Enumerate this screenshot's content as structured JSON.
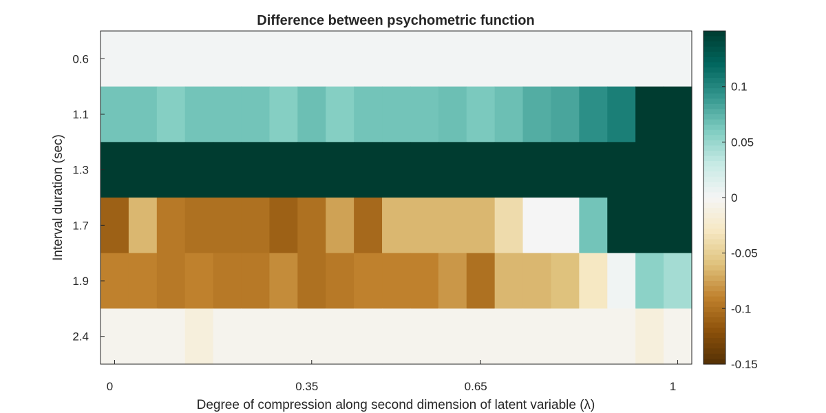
{
  "chart_data": {
    "type": "heatmap",
    "title": "Difference between psychometric function",
    "xlabel": "Degree of compression along second dimension of latent variable (λ)",
    "ylabel": "Interval duration (sec)",
    "x_tick_labels": [
      "0",
      "0.35",
      "0.65",
      "1"
    ],
    "x_tick_values": [
      0,
      0.35,
      0.65,
      1
    ],
    "x_range": [
      -0.025,
      1.025
    ],
    "x_step": 0.05,
    "y_categories": [
      "0.6",
      "1.1",
      "1.3",
      "1.7",
      "1.9",
      "2.4"
    ],
    "colorbar": {
      "range": [
        -0.15,
        0.15
      ],
      "tick_labels": [
        "0.1",
        "0.05",
        "0",
        "-0.05",
        "-0.1",
        "-0.15"
      ],
      "tick_values": [
        0.1,
        0.05,
        0,
        -0.05,
        -0.1,
        -0.15
      ],
      "colormap": "BrBG",
      "stops": [
        "#543005",
        "#8c510a",
        "#bf812d",
        "#dfc27d",
        "#f6e8c3",
        "#f5f5f5",
        "#c7eae5",
        "#80cdc1",
        "#35978f",
        "#01665e",
        "#003c30"
      ]
    },
    "values": [
      [
        0.002,
        0.002,
        0.002,
        0.002,
        0.002,
        0.002,
        0.002,
        0.002,
        0.002,
        0.002,
        0.002,
        0.002,
        0.002,
        0.002,
        0.002,
        0.002,
        0.002,
        0.002,
        0.002,
        0.002,
        0.002
      ],
      [
        0.065,
        0.065,
        0.058,
        0.065,
        0.065,
        0.065,
        0.058,
        0.068,
        0.058,
        0.065,
        0.065,
        0.065,
        0.068,
        0.062,
        0.068,
        0.078,
        0.082,
        0.095,
        0.105,
        0.15,
        0.15
      ],
      [
        0.15,
        0.15,
        0.15,
        0.15,
        0.15,
        0.15,
        0.15,
        0.15,
        0.15,
        0.15,
        0.15,
        0.15,
        0.15,
        0.15,
        0.15,
        0.15,
        0.15,
        0.15,
        0.15,
        0.15,
        0.15
      ],
      [
        -0.11,
        -0.065,
        -0.095,
        -0.1,
        -0.1,
        -0.1,
        -0.11,
        -0.1,
        -0.075,
        -0.105,
        -0.065,
        -0.065,
        -0.065,
        -0.065,
        -0.04,
        0.0,
        0.0,
        0.065,
        0.15,
        0.15,
        0.15
      ],
      [
        -0.09,
        -0.09,
        -0.095,
        -0.09,
        -0.095,
        -0.095,
        -0.085,
        -0.1,
        -0.095,
        -0.09,
        -0.09,
        -0.09,
        -0.08,
        -0.1,
        -0.065,
        -0.065,
        -0.06,
        -0.03,
        0.003,
        0.055,
        0.045
      ],
      [
        -0.005,
        -0.005,
        -0.005,
        -0.015,
        -0.005,
        -0.005,
        -0.005,
        -0.005,
        -0.005,
        -0.005,
        -0.005,
        -0.005,
        -0.005,
        -0.005,
        -0.005,
        -0.005,
        -0.005,
        -0.005,
        -0.005,
        -0.015,
        -0.005
      ]
    ]
  }
}
